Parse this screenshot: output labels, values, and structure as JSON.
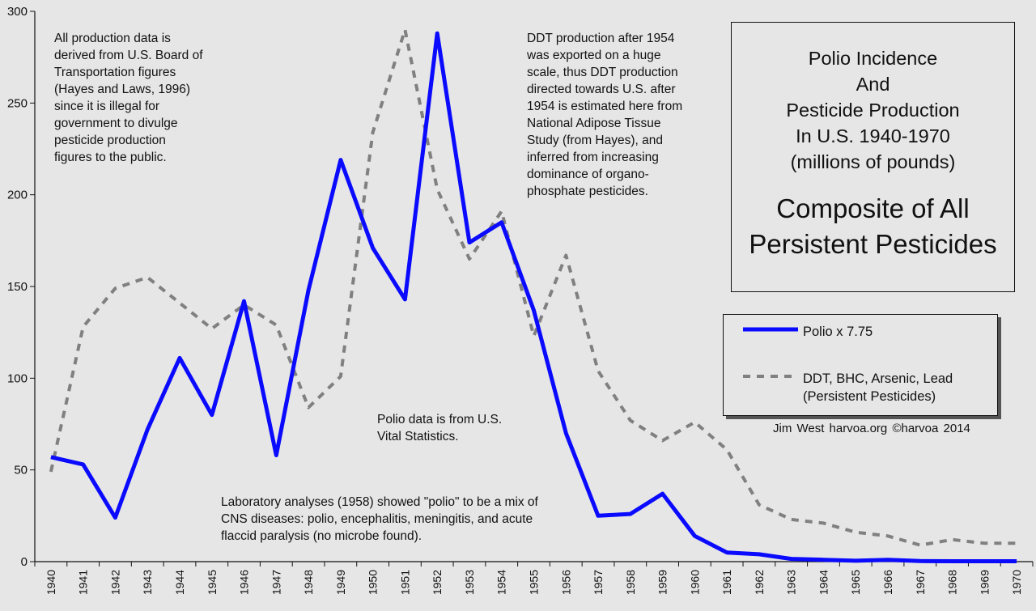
{
  "chart_data": {
    "type": "line",
    "title": [
      "Polio Incidence",
      "And",
      "Pesticide Production",
      "In U.S. 1940-1970",
      "(millions of pounds)"
    ],
    "subtitle": [
      "Composite of All",
      "Persistent Pesticides"
    ],
    "categories": [
      "1940",
      "1941",
      "1942",
      "1943",
      "1944",
      "1945",
      "1946",
      "1947",
      "1948",
      "1949",
      "1950",
      "1951",
      "1952",
      "1953",
      "1954",
      "1955",
      "1956",
      "1957",
      "1958",
      "1959",
      "1960",
      "1961",
      "1962",
      "1963",
      "1964",
      "1965",
      "1966",
      "1967",
      "1968",
      "1969",
      "1970"
    ],
    "series": [
      {
        "name": "Polio x 7.75",
        "style": "solid",
        "color": "#0a0aff",
        "values": [
          57,
          53,
          24,
          72,
          111,
          80,
          142,
          58,
          148,
          219,
          171,
          143,
          288,
          174,
          185,
          137,
          70,
          25,
          26,
          37,
          14,
          5,
          4,
          1.5,
          1,
          0.5,
          1,
          0.3,
          0.2,
          0.2,
          0.2
        ]
      },
      {
        "name": "DDT, BHC, Arsenic, Lead (Persistent Pesticides)",
        "style": "dashed",
        "color": "#808080",
        "values": [
          49,
          128,
          149,
          155,
          141,
          127,
          140,
          129,
          84,
          101,
          234,
          290,
          203,
          165,
          191,
          123,
          167,
          104,
          77,
          66,
          76,
          61,
          31,
          23,
          21,
          16,
          14,
          9,
          12,
          10,
          10
        ]
      }
    ],
    "yticks": [
      "0",
      "50",
      "100",
      "150",
      "200",
      "250",
      "300"
    ],
    "ylim": [
      0,
      300
    ],
    "xlabel": "",
    "ylabel": "",
    "legend": {
      "placement": "right",
      "polio_label": "Polio x 7.75",
      "pesticide_label_1": "DDT, BHC, Arsenic, Lead",
      "pesticide_label_2": "(Persistent Pesticides)"
    },
    "annotations": {
      "production_note": [
        "All production data is",
        "derived from U.S. Board of",
        "Transportation figures",
        "(Hayes and Laws, 1996)",
        "since it is illegal for",
        "government to divulge",
        "pesticide production",
        "figures to the public."
      ],
      "ddt_note": [
        "DDT production after 1954",
        "was exported on a huge",
        "scale, thus DDT production",
        "directed towards U.S. after",
        "1954 is estimated here from",
        "National Adipose Tissue",
        "Study (from Hayes), and",
        "inferred from increasing",
        "dominance of organo-",
        "phosphate pesticides."
      ],
      "polio_source_note": [
        "Polio data is from U.S.",
        "Vital Statistics."
      ],
      "lab_note": [
        "Laboratory analyses (1958) showed \"polio\" to be a mix of",
        "CNS diseases: polio, encephalitis, meningitis, and acute",
        "flaccid paralysis (no microbe found)."
      ]
    },
    "credit": "Jim West   harvoa.org   ©harvoa 2014"
  }
}
